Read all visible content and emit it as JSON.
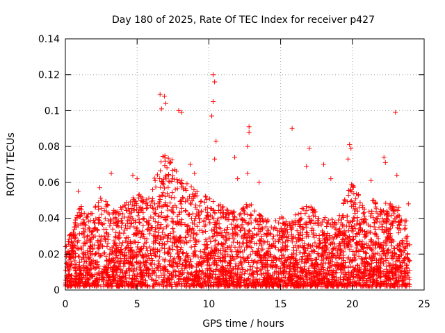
{
  "chart_data": {
    "type": "scatter",
    "title": "Day 180 of 2025, Rate Of TEC Index for receiver p427",
    "xlabel": "GPS time / hours",
    "ylabel": "ROTI / TECUs",
    "xlim": [
      0,
      25
    ],
    "ylim": [
      0,
      0.14
    ],
    "xticks": [
      0,
      5,
      10,
      15,
      20,
      25
    ],
    "yticks": [
      0,
      0.02,
      0.04,
      0.06,
      0.08,
      0.1,
      0.12,
      0.14
    ],
    "xtick_labels": [
      "0",
      "5",
      "10",
      "15",
      "20",
      "25"
    ],
    "ytick_labels": [
      "0",
      "0.02",
      "0.04",
      "0.06",
      "0.08",
      "0.1",
      "0.12",
      "0.14"
    ],
    "grid": true,
    "marker": "plus",
    "series_color": "#ff0000",
    "notable_points": [
      {
        "x": 6.6,
        "y": 0.109
      },
      {
        "x": 6.9,
        "y": 0.108
      },
      {
        "x": 6.7,
        "y": 0.101
      },
      {
        "x": 7.0,
        "y": 0.104
      },
      {
        "x": 7.9,
        "y": 0.1
      },
      {
        "x": 8.1,
        "y": 0.099
      },
      {
        "x": 10.3,
        "y": 0.12
      },
      {
        "x": 10.4,
        "y": 0.116
      },
      {
        "x": 10.3,
        "y": 0.105
      },
      {
        "x": 10.2,
        "y": 0.097
      },
      {
        "x": 10.5,
        "y": 0.083
      },
      {
        "x": 10.4,
        "y": 0.073
      },
      {
        "x": 12.8,
        "y": 0.091
      },
      {
        "x": 12.8,
        "y": 0.088
      },
      {
        "x": 12.7,
        "y": 0.08
      },
      {
        "x": 12.7,
        "y": 0.065
      },
      {
        "x": 15.8,
        "y": 0.09
      },
      {
        "x": 17.0,
        "y": 0.079
      },
      {
        "x": 16.8,
        "y": 0.069
      },
      {
        "x": 18.0,
        "y": 0.07
      },
      {
        "x": 19.8,
        "y": 0.081
      },
      {
        "x": 19.9,
        "y": 0.079
      },
      {
        "x": 19.7,
        "y": 0.073
      },
      {
        "x": 22.2,
        "y": 0.074
      },
      {
        "x": 22.3,
        "y": 0.071
      },
      {
        "x": 23.0,
        "y": 0.099
      },
      {
        "x": 23.1,
        "y": 0.064
      },
      {
        "x": 3.2,
        "y": 0.065
      },
      {
        "x": 4.7,
        "y": 0.064
      },
      {
        "x": 5.0,
        "y": 0.062
      },
      {
        "x": 8.7,
        "y": 0.07
      },
      {
        "x": 9.0,
        "y": 0.065
      },
      {
        "x": 11.8,
        "y": 0.074
      },
      {
        "x": 12.0,
        "y": 0.062
      },
      {
        "x": 13.5,
        "y": 0.06
      },
      {
        "x": 18.5,
        "y": 0.062
      },
      {
        "x": 21.3,
        "y": 0.061
      },
      {
        "x": 0.9,
        "y": 0.055
      },
      {
        "x": 2.4,
        "y": 0.057
      },
      {
        "x": 23.9,
        "y": 0.048
      }
    ],
    "density_profile": {
      "hours": [
        0,
        0.5,
        1,
        1.5,
        2,
        2.5,
        3,
        3.5,
        4,
        4.5,
        5,
        5.5,
        6,
        6.5,
        7,
        7.5,
        8,
        8.5,
        9,
        9.5,
        10,
        10.5,
        11,
        11.5,
        12,
        12.5,
        13,
        13.5,
        14,
        14.5,
        15,
        15.5,
        16,
        16.5,
        17,
        17.5,
        18,
        18.5,
        19,
        19.5,
        20,
        20.5,
        21,
        21.5,
        22,
        22.5,
        23,
        23.5,
        24
      ],
      "typical_upper_roti": [
        0.022,
        0.034,
        0.046,
        0.04,
        0.044,
        0.05,
        0.046,
        0.042,
        0.046,
        0.048,
        0.052,
        0.05,
        0.055,
        0.068,
        0.078,
        0.07,
        0.06,
        0.058,
        0.055,
        0.05,
        0.052,
        0.048,
        0.045,
        0.042,
        0.044,
        0.046,
        0.046,
        0.04,
        0.038,
        0.036,
        0.04,
        0.038,
        0.04,
        0.044,
        0.046,
        0.042,
        0.04,
        0.038,
        0.04,
        0.05,
        0.058,
        0.05,
        0.04,
        0.05,
        0.044,
        0.048,
        0.044,
        0.046,
        0.028
      ]
    }
  }
}
